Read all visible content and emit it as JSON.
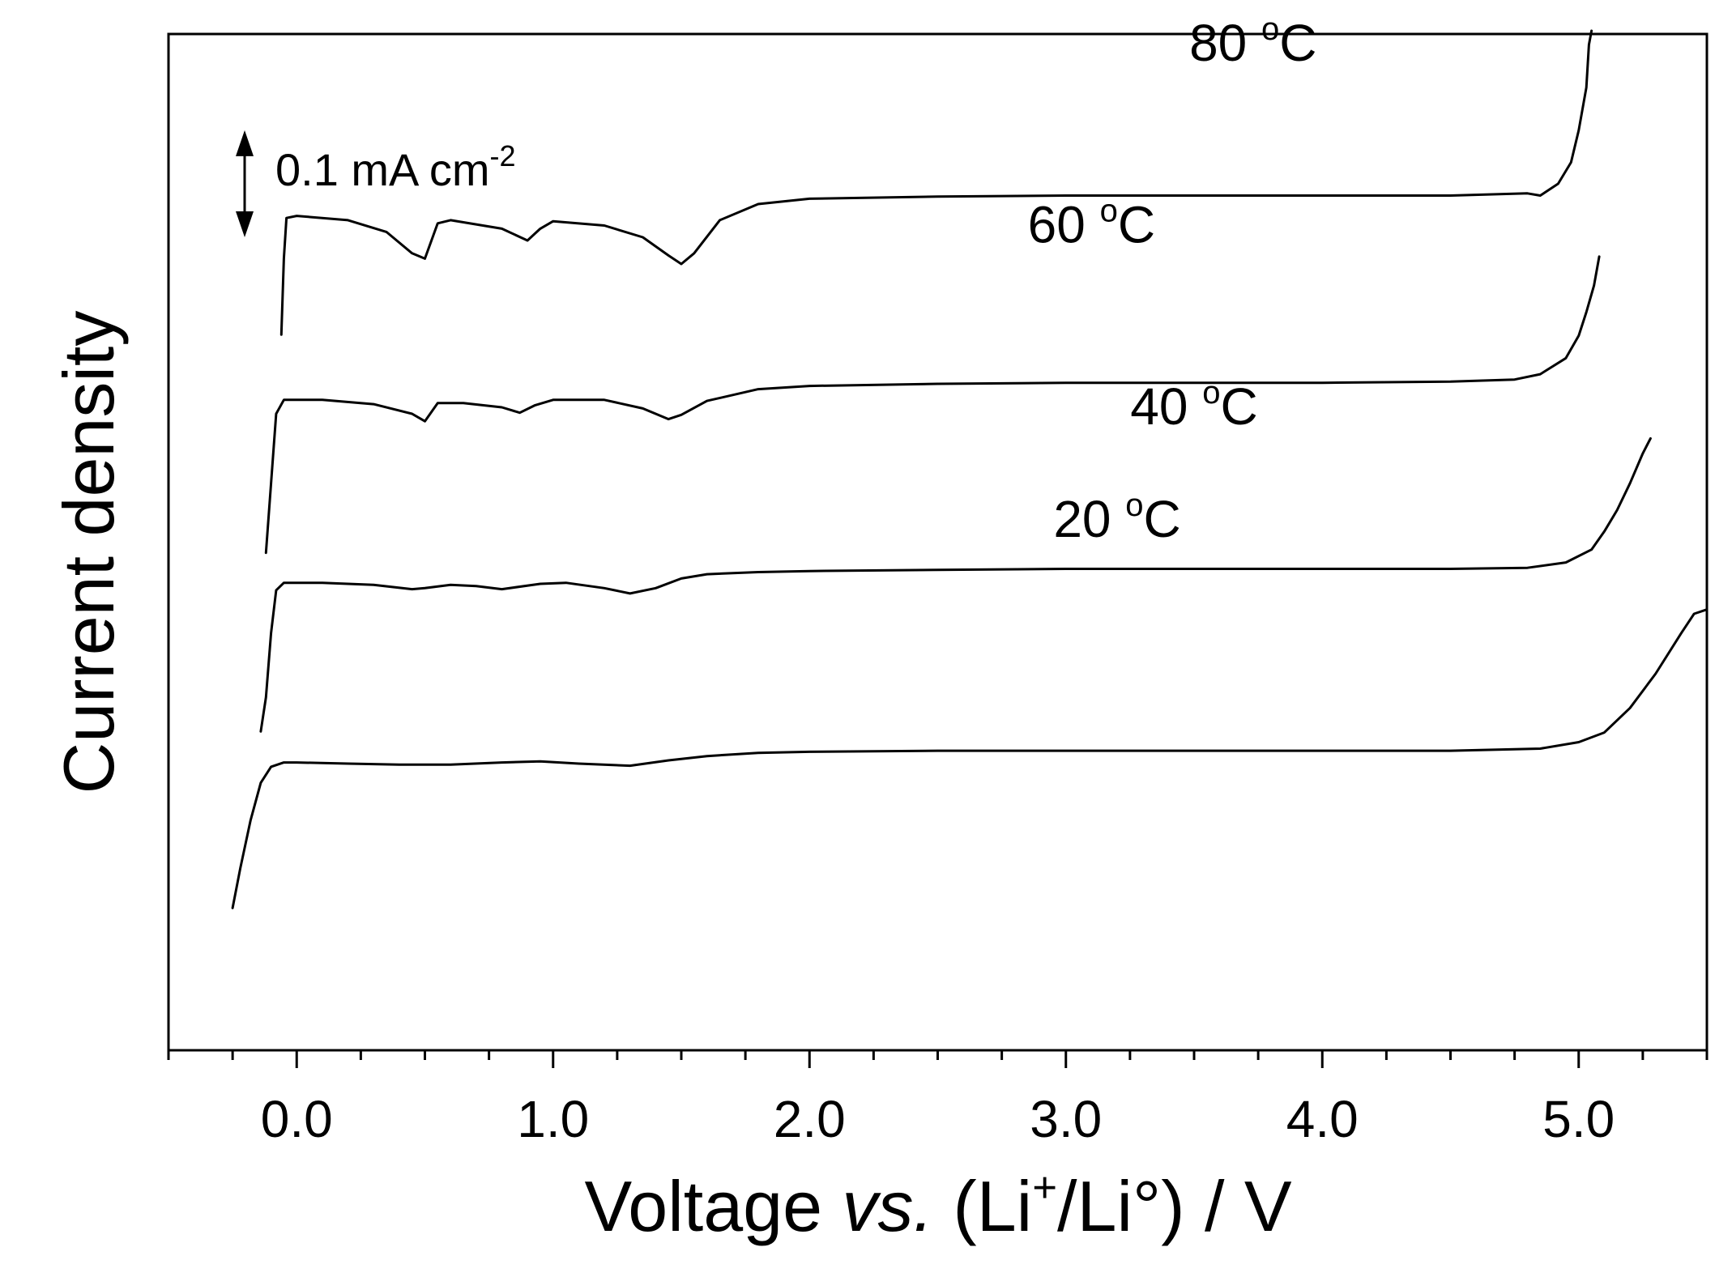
{
  "chart_data": {
    "type": "line",
    "title": "",
    "xlabel": {
      "main": "Voltage ",
      "italic": "vs.",
      "paren_open": " (Li",
      "sup1": "+",
      "mid": "/Li°",
      "tail": ") / V"
    },
    "ylabel": "Current density",
    "xlim": [
      -0.5,
      5.5
    ],
    "x_major_ticks": [
      0.0,
      1.0,
      2.0,
      3.0,
      4.0,
      5.0
    ],
    "x_tick_labels": [
      "0.0",
      "1.0",
      "2.0",
      "3.0",
      "4.0",
      "5.0"
    ],
    "x_minor_step": 0.25,
    "y_units": "mA cm^-2 (relative, curves offset)",
    "ylim": [
      -0.4,
      0.55
    ],
    "scale_bar": {
      "value": 0.1,
      "label_main": "0.1 mA cm",
      "label_sup": "-2",
      "y_from": 0.36,
      "y_to": 0.46
    },
    "series": [
      {
        "name": "20 °C",
        "label_main": "20 ",
        "label_sup": "o",
        "label_tail": "C",
        "label_at": [
          3.2,
          0.08
        ],
        "points": [
          [
            -0.25,
            -0.267
          ],
          [
            -0.22,
            -0.23
          ],
          [
            -0.18,
            -0.185
          ],
          [
            -0.14,
            -0.15
          ],
          [
            -0.1,
            -0.135
          ],
          [
            -0.05,
            -0.131
          ],
          [
            0.0,
            -0.131
          ],
          [
            0.2,
            -0.132
          ],
          [
            0.4,
            -0.133
          ],
          [
            0.6,
            -0.133
          ],
          [
            0.8,
            -0.131
          ],
          [
            0.95,
            -0.13
          ],
          [
            1.1,
            -0.132
          ],
          [
            1.3,
            -0.134
          ],
          [
            1.45,
            -0.129
          ],
          [
            1.6,
            -0.125
          ],
          [
            1.8,
            -0.122
          ],
          [
            2.0,
            -0.121
          ],
          [
            2.5,
            -0.12
          ],
          [
            3.0,
            -0.12
          ],
          [
            3.5,
            -0.12
          ],
          [
            4.0,
            -0.12
          ],
          [
            4.5,
            -0.12
          ],
          [
            4.85,
            -0.118
          ],
          [
            5.0,
            -0.112
          ],
          [
            5.1,
            -0.103
          ],
          [
            5.2,
            -0.08
          ],
          [
            5.3,
            -0.048
          ],
          [
            5.4,
            -0.01
          ],
          [
            5.45,
            0.008
          ],
          [
            5.5,
            0.012
          ]
        ]
      },
      {
        "name": "40 °C",
        "label_main": "40 ",
        "label_sup": "o",
        "label_tail": "C",
        "label_at": [
          3.5,
          0.185
        ],
        "points": [
          [
            -0.14,
            -0.102
          ],
          [
            -0.12,
            -0.07
          ],
          [
            -0.1,
            -0.01
          ],
          [
            -0.08,
            0.03
          ],
          [
            -0.05,
            0.037
          ],
          [
            0.1,
            0.037
          ],
          [
            0.3,
            0.035
          ],
          [
            0.45,
            0.031
          ],
          [
            0.5,
            0.032
          ],
          [
            0.6,
            0.035
          ],
          [
            0.7,
            0.034
          ],
          [
            0.8,
            0.031
          ],
          [
            0.95,
            0.036
          ],
          [
            1.05,
            0.037
          ],
          [
            1.2,
            0.032
          ],
          [
            1.3,
            0.027
          ],
          [
            1.4,
            0.032
          ],
          [
            1.5,
            0.041
          ],
          [
            1.6,
            0.045
          ],
          [
            1.8,
            0.047
          ],
          [
            2.0,
            0.048
          ],
          [
            2.5,
            0.049
          ],
          [
            3.0,
            0.05
          ],
          [
            3.5,
            0.05
          ],
          [
            4.0,
            0.05
          ],
          [
            4.5,
            0.05
          ],
          [
            4.8,
            0.051
          ],
          [
            4.95,
            0.056
          ],
          [
            5.05,
            0.068
          ],
          [
            5.1,
            0.085
          ],
          [
            5.15,
            0.105
          ],
          [
            5.2,
            0.13
          ],
          [
            5.25,
            0.158
          ],
          [
            5.28,
            0.172
          ]
        ]
      },
      {
        "name": "60 °C",
        "label_main": "60 ",
        "label_sup": "o",
        "label_tail": "C",
        "label_at": [
          3.1,
          0.355
        ],
        "points": [
          [
            -0.12,
            0.065
          ],
          [
            -0.1,
            0.13
          ],
          [
            -0.08,
            0.195
          ],
          [
            -0.05,
            0.208
          ],
          [
            0.1,
            0.208
          ],
          [
            0.3,
            0.204
          ],
          [
            0.45,
            0.195
          ],
          [
            0.5,
            0.188
          ],
          [
            0.55,
            0.205
          ],
          [
            0.65,
            0.205
          ],
          [
            0.8,
            0.201
          ],
          [
            0.87,
            0.196
          ],
          [
            0.93,
            0.203
          ],
          [
            1.0,
            0.208
          ],
          [
            1.2,
            0.208
          ],
          [
            1.35,
            0.2
          ],
          [
            1.45,
            0.19
          ],
          [
            1.5,
            0.194
          ],
          [
            1.6,
            0.207
          ],
          [
            1.8,
            0.218
          ],
          [
            2.0,
            0.221
          ],
          [
            2.5,
            0.223
          ],
          [
            3.0,
            0.224
          ],
          [
            3.5,
            0.224
          ],
          [
            4.0,
            0.224
          ],
          [
            4.5,
            0.225
          ],
          [
            4.75,
            0.227
          ],
          [
            4.85,
            0.232
          ],
          [
            4.95,
            0.247
          ],
          [
            5.0,
            0.268
          ],
          [
            5.03,
            0.29
          ],
          [
            5.06,
            0.315
          ],
          [
            5.08,
            0.342
          ]
        ]
      },
      {
        "name": "80 °C",
        "label_main": "80 ",
        "label_sup": "o",
        "label_tail": "C",
        "label_at": [
          3.73,
          0.525
        ],
        "points": [
          [
            -0.06,
            0.269
          ],
          [
            -0.05,
            0.34
          ],
          [
            -0.04,
            0.378
          ],
          [
            0.0,
            0.38
          ],
          [
            0.2,
            0.376
          ],
          [
            0.35,
            0.365
          ],
          [
            0.45,
            0.345
          ],
          [
            0.5,
            0.34
          ],
          [
            0.55,
            0.373
          ],
          [
            0.6,
            0.376
          ],
          [
            0.8,
            0.368
          ],
          [
            0.9,
            0.357
          ],
          [
            0.95,
            0.368
          ],
          [
            1.0,
            0.375
          ],
          [
            1.2,
            0.371
          ],
          [
            1.35,
            0.36
          ],
          [
            1.45,
            0.343
          ],
          [
            1.5,
            0.335
          ],
          [
            1.55,
            0.345
          ],
          [
            1.65,
            0.376
          ],
          [
            1.8,
            0.391
          ],
          [
            2.0,
            0.396
          ],
          [
            2.5,
            0.398
          ],
          [
            3.0,
            0.399
          ],
          [
            3.5,
            0.399
          ],
          [
            4.0,
            0.399
          ],
          [
            4.5,
            0.399
          ],
          [
            4.8,
            0.401
          ],
          [
            4.85,
            0.399
          ],
          [
            4.92,
            0.41
          ],
          [
            4.97,
            0.43
          ],
          [
            5.0,
            0.46
          ],
          [
            5.03,
            0.5
          ],
          [
            5.04,
            0.54
          ],
          [
            5.05,
            0.553
          ]
        ]
      }
    ]
  }
}
